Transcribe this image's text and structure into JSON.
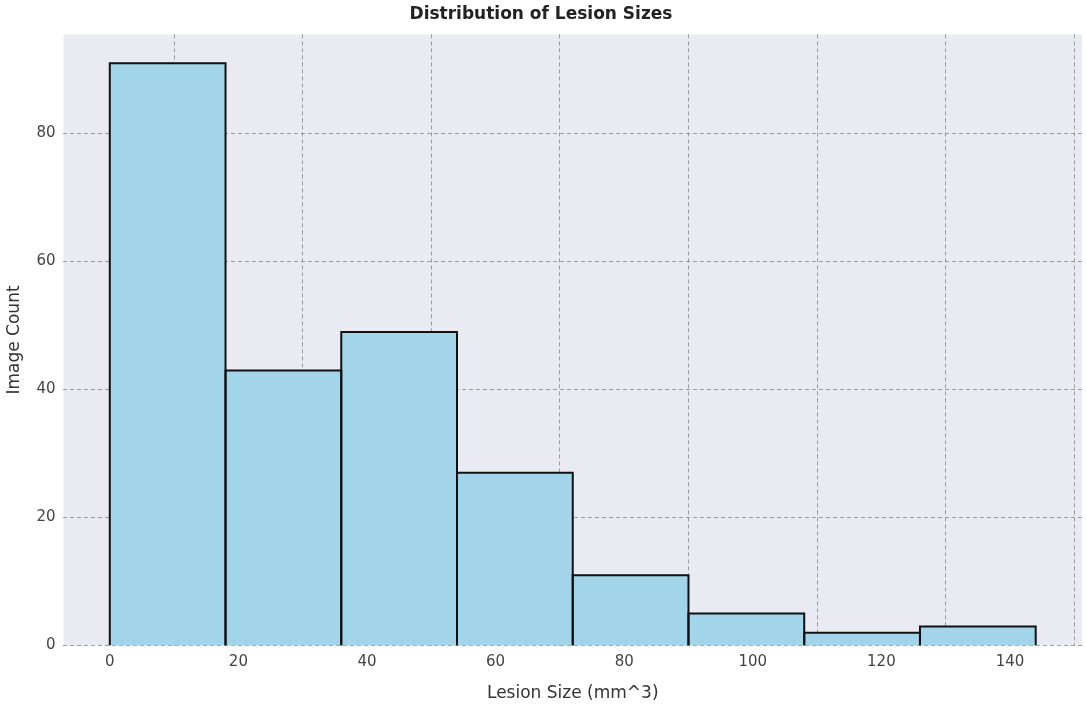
{
  "chart_data": {
    "type": "histogram",
    "title": "Distribution of Lesion Sizes",
    "xlabel": "Lesion Size (mm^3)",
    "ylabel": "Image Count",
    "bins": [
      0,
      18,
      36,
      54,
      72,
      90,
      108,
      126,
      144
    ],
    "values": [
      91,
      43,
      49,
      27,
      11,
      5,
      2,
      3
    ],
    "color": "#a2d4ea",
    "xlim": [
      -7.2,
      151.2
    ],
    "ylim": [
      0,
      95.5
    ],
    "xticks": [
      0,
      20,
      40,
      60,
      80,
      100,
      120,
      140
    ],
    "yticks": [
      0,
      20,
      40,
      60,
      80
    ],
    "grid": true
  }
}
